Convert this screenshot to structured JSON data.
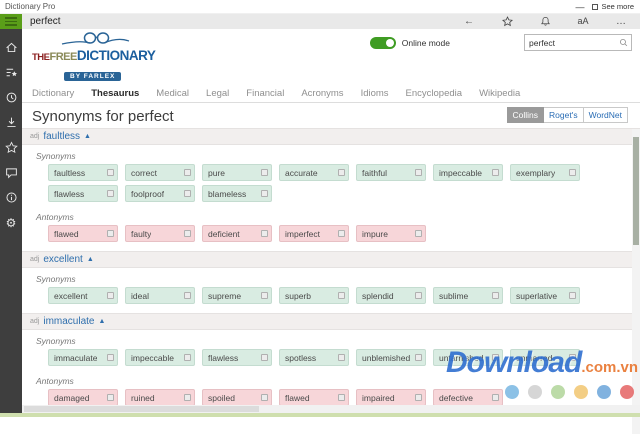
{
  "window": {
    "title": "Dictionary Pro",
    "minimize": "—",
    "see_more": "See more"
  },
  "toolbar": {
    "word": "perfect",
    "icons": [
      {
        "name": "back-icon"
      },
      {
        "name": "star-icon"
      },
      {
        "name": "bell-icon"
      },
      {
        "name": "text-size-icon",
        "glyph": "aA"
      },
      {
        "name": "more-icon",
        "glyph": "…"
      }
    ]
  },
  "sidebar": {
    "items": [
      {
        "name": "home-icon"
      },
      {
        "name": "wordlist-icon"
      },
      {
        "name": "history-icon"
      },
      {
        "name": "download-icon"
      },
      {
        "name": "favorites-icon"
      },
      {
        "name": "feedback-icon"
      },
      {
        "name": "info-icon"
      },
      {
        "name": "settings-icon"
      }
    ]
  },
  "header": {
    "logo": {
      "the": "THE",
      "free": "FREE",
      "dictionary": "DICTIONARY",
      "byline": "BY FARLEX"
    },
    "online_mode_label": "Online mode",
    "online_mode_on": true,
    "search": {
      "value": "perfect"
    }
  },
  "nav": {
    "items": [
      "Dictionary",
      "Thesaurus",
      "Medical",
      "Legal",
      "Financial",
      "Acronyms",
      "Idioms",
      "Encyclopedia",
      "Wikipedia"
    ],
    "active": "Thesaurus"
  },
  "main": {
    "title": "Synonyms for perfect",
    "sources": [
      {
        "label": "Collins",
        "active": true
      },
      {
        "label": "Roget's",
        "active": false
      },
      {
        "label": "WordNet",
        "active": false
      }
    ],
    "synonyms_label": "Synonyms",
    "antonyms_label": "Antonyms",
    "collapse_glyph": "▲",
    "sections": [
      {
        "pos": "adj",
        "word": "faultless",
        "synonyms": [
          "faultless",
          "correct",
          "pure",
          "accurate",
          "faithful",
          "impeccable",
          "exemplary",
          "flawless",
          "foolproof",
          "blameless"
        ],
        "antonyms": [
          "flawed",
          "faulty",
          "deficient",
          "imperfect",
          "impure"
        ]
      },
      {
        "pos": "adj",
        "word": "excellent",
        "synonyms": [
          "excellent",
          "ideal",
          "supreme",
          "superb",
          "splendid",
          "sublime",
          "superlative"
        ],
        "antonyms": []
      },
      {
        "pos": "adj",
        "word": "immaculate",
        "synonyms": [
          "immaculate",
          "impeccable",
          "flawless",
          "spotless",
          "unblemished",
          "untarnished",
          "unmarred"
        ],
        "antonyms": [
          "damaged",
          "ruined",
          "spoiled",
          "flawed",
          "impaired",
          "defective"
        ]
      }
    ]
  },
  "watermark": {
    "text": "Download",
    "suffix": ".com.vn",
    "dot_colors": [
      "#6aaede",
      "#c9c9c9",
      "#a8d08d",
      "#f0c060",
      "#5b9bd5",
      "#e05252"
    ]
  }
}
